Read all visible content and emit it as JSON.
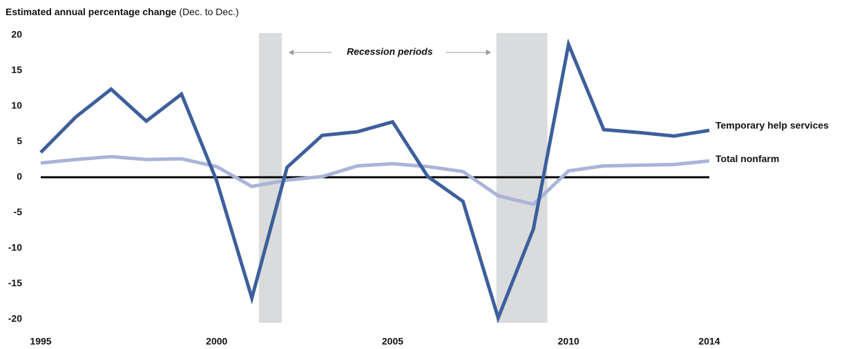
{
  "chart_data": {
    "type": "line",
    "title": "Estimated annual percentage change",
    "subtitle": "(Dec. to Dec.)",
    "annotation": "Recession periods",
    "x": [
      1995,
      1996,
      1997,
      1998,
      1999,
      2000,
      2001,
      2002,
      2003,
      2004,
      2005,
      2006,
      2007,
      2008,
      2009,
      2010,
      2011,
      2012,
      2013,
      2014
    ],
    "series": [
      {
        "name": "Temporary help services",
        "color": "#3d5f9b",
        "values": [
          3.5,
          8.5,
          12.4,
          7.9,
          11.7,
          -0.5,
          -17.0,
          1.4,
          5.9,
          6.4,
          7.8,
          0.1,
          -3.4,
          -19.8,
          -7.3,
          18.7,
          6.7,
          6.3,
          5.8,
          6.6
        ]
      },
      {
        "name": "Total nonfarm",
        "color": "#aab3d8",
        "values": [
          2.0,
          2.5,
          2.9,
          2.5,
          2.6,
          1.5,
          -1.3,
          -0.4,
          0.1,
          1.6,
          1.9,
          1.5,
          0.8,
          -2.6,
          -3.8,
          0.9,
          1.6,
          1.7,
          1.8,
          2.3
        ]
      }
    ],
    "recessions": [
      [
        2001.2,
        2001.85
      ],
      [
        2007.95,
        2009.4
      ]
    ],
    "recession_color": "#d9dbdc",
    "xlim": [
      1995,
      2014
    ],
    "xticks": [
      1995,
      2000,
      2005,
      2010,
      2014
    ],
    "ylim": [
      -20,
      20
    ],
    "yticks": [
      -20,
      -15,
      -10,
      -5,
      0,
      5,
      10,
      15,
      20
    ]
  }
}
